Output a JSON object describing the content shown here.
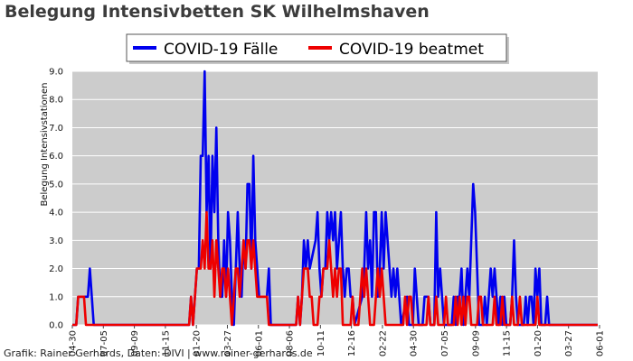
{
  "title": "Belegung Intensivbetten SK Wilhelmshaven",
  "footer": "Grafik: Rainer Gerhards, Daten: DIVI | www.rainer-gerhards.de",
  "chart_data": {
    "type": "line",
    "title": "Belegung Intensivbetten SK Wilhelmshaven",
    "ylabel": "Belegung Intensivstationen",
    "xlabel": "",
    "ylim": [
      0,
      9
    ],
    "yticks": [
      "0.0",
      "1.0",
      "2.0",
      "3.0",
      "4.0",
      "5.0",
      "6.0",
      "7.0",
      "8.0",
      "9.0"
    ],
    "x_ticks": [
      "04-30",
      "07-05",
      "09-09",
      "11-15",
      "01-20",
      "03-27",
      "06-01",
      "08-06",
      "10-11",
      "12-16",
      "02-22",
      "04-30",
      "07-05",
      "09-09",
      "11-15",
      "01-20",
      "03-27",
      "06-01"
    ],
    "grid": true,
    "legend": "top-center",
    "background_color": "#cccccc",
    "series": [
      {
        "name": "COVID-19 Fälle",
        "color": "#0000ee",
        "points": [
          [
            0,
            0
          ],
          [
            2,
            0
          ],
          [
            3,
            1
          ],
          [
            6,
            1
          ],
          [
            8,
            1
          ],
          [
            9,
            2
          ],
          [
            10,
            1
          ],
          [
            11,
            0
          ],
          [
            40,
            0
          ],
          [
            60,
            0
          ],
          [
            61,
            1
          ],
          [
            62,
            0
          ],
          [
            63,
            1
          ],
          [
            64,
            2
          ],
          [
            65,
            2
          ],
          [
            66,
            6
          ],
          [
            67,
            6
          ],
          [
            68,
            9
          ],
          [
            69,
            4
          ],
          [
            70,
            6
          ],
          [
            71,
            2
          ],
          [
            72,
            6
          ],
          [
            73,
            4
          ],
          [
            74,
            7
          ],
          [
            75,
            3
          ],
          [
            76,
            1
          ],
          [
            77,
            1
          ],
          [
            78,
            3
          ],
          [
            79,
            1
          ],
          [
            80,
            4
          ],
          [
            81,
            3
          ],
          [
            82,
            1
          ],
          [
            83,
            0
          ],
          [
            84,
            2
          ],
          [
            85,
            4
          ],
          [
            86,
            2
          ],
          [
            87,
            1
          ],
          [
            88,
            3
          ],
          [
            89,
            2
          ],
          [
            90,
            5
          ],
          [
            91,
            5
          ],
          [
            92,
            2
          ],
          [
            93,
            6
          ],
          [
            94,
            3
          ],
          [
            95,
            2
          ],
          [
            96,
            1
          ],
          [
            100,
            1
          ],
          [
            101,
            2
          ],
          [
            102,
            0
          ],
          [
            115,
            0
          ],
          [
            116,
            1
          ],
          [
            117,
            0
          ],
          [
            118,
            1
          ],
          [
            119,
            3
          ],
          [
            120,
            2
          ],
          [
            121,
            3
          ],
          [
            122,
            2
          ],
          [
            125,
            3
          ],
          [
            126,
            4
          ],
          [
            127,
            2
          ],
          [
            128,
            1
          ],
          [
            129,
            2
          ],
          [
            130,
            2
          ],
          [
            131,
            4
          ],
          [
            132,
            3
          ],
          [
            133,
            4
          ],
          [
            134,
            3
          ],
          [
            135,
            4
          ],
          [
            136,
            2
          ],
          [
            137,
            3
          ],
          [
            138,
            4
          ],
          [
            139,
            2
          ],
          [
            140,
            1
          ],
          [
            141,
            2
          ],
          [
            142,
            2
          ],
          [
            143,
            1
          ],
          [
            144,
            1
          ],
          [
            145,
            0
          ],
          [
            149,
            1
          ],
          [
            150,
            2
          ],
          [
            151,
            4
          ],
          [
            152,
            2
          ],
          [
            153,
            3
          ],
          [
            154,
            1
          ],
          [
            155,
            4
          ],
          [
            156,
            4
          ],
          [
            157,
            1
          ],
          [
            158,
            2
          ],
          [
            159,
            4
          ],
          [
            160,
            2
          ],
          [
            161,
            4
          ],
          [
            162,
            3
          ],
          [
            163,
            2
          ],
          [
            164,
            1
          ],
          [
            165,
            2
          ],
          [
            166,
            1
          ],
          [
            167,
            2
          ],
          [
            168,
            1
          ],
          [
            169,
            0
          ],
          [
            172,
            1
          ],
          [
            173,
            0
          ],
          [
            175,
            0
          ],
          [
            176,
            2
          ],
          [
            177,
            1
          ],
          [
            178,
            0
          ],
          [
            180,
            0
          ],
          [
            181,
            1
          ],
          [
            182,
            1
          ],
          [
            183,
            1
          ],
          [
            184,
            0
          ],
          [
            186,
            0
          ],
          [
            187,
            4
          ],
          [
            188,
            1
          ],
          [
            189,
            2
          ],
          [
            190,
            1
          ],
          [
            191,
            0
          ],
          [
            195,
            0
          ],
          [
            196,
            1
          ],
          [
            197,
            0
          ],
          [
            198,
            1
          ],
          [
            199,
            1
          ],
          [
            200,
            2
          ],
          [
            201,
            0
          ],
          [
            202,
            1
          ],
          [
            203,
            2
          ],
          [
            204,
            1
          ],
          [
            205,
            3
          ],
          [
            206,
            5
          ],
          [
            207,
            4
          ],
          [
            208,
            2
          ],
          [
            209,
            0
          ],
          [
            211,
            0
          ],
          [
            212,
            1
          ],
          [
            213,
            0
          ],
          [
            214,
            1
          ],
          [
            215,
            2
          ],
          [
            216,
            1
          ],
          [
            217,
            2
          ],
          [
            218,
            1
          ],
          [
            219,
            0
          ],
          [
            220,
            1
          ],
          [
            221,
            0
          ],
          [
            222,
            1
          ],
          [
            223,
            0
          ],
          [
            225,
            0
          ],
          [
            226,
            1
          ],
          [
            227,
            3
          ],
          [
            228,
            1
          ],
          [
            229,
            0
          ],
          [
            232,
            0
          ],
          [
            233,
            1
          ],
          [
            234,
            0
          ],
          [
            235,
            1
          ],
          [
            236,
            1
          ],
          [
            237,
            0
          ],
          [
            238,
            2
          ],
          [
            239,
            1
          ],
          [
            240,
            2
          ],
          [
            241,
            0
          ],
          [
            243,
            0
          ],
          [
            244,
            1
          ],
          [
            245,
            0
          ],
          [
            270,
            0
          ]
        ]
      },
      {
        "name": "COVID-19 beatmet",
        "color": "#ee0000",
        "points": [
          [
            0,
            0
          ],
          [
            2,
            0
          ],
          [
            3,
            1
          ],
          [
            6,
            1
          ],
          [
            7,
            0
          ],
          [
            40,
            0
          ],
          [
            60,
            0
          ],
          [
            61,
            1
          ],
          [
            62,
            0
          ],
          [
            63,
            1
          ],
          [
            64,
            2
          ],
          [
            66,
            2
          ],
          [
            67,
            3
          ],
          [
            68,
            2
          ],
          [
            69,
            4
          ],
          [
            70,
            2
          ],
          [
            71,
            2
          ],
          [
            72,
            3
          ],
          [
            73,
            1
          ],
          [
            74,
            3
          ],
          [
            75,
            2
          ],
          [
            76,
            1
          ],
          [
            77,
            2
          ],
          [
            78,
            2
          ],
          [
            79,
            1
          ],
          [
            80,
            2
          ],
          [
            81,
            1
          ],
          [
            82,
            0
          ],
          [
            83,
            1
          ],
          [
            84,
            2
          ],
          [
            85,
            2
          ],
          [
            86,
            1
          ],
          [
            87,
            2
          ],
          [
            88,
            3
          ],
          [
            89,
            2
          ],
          [
            90,
            3
          ],
          [
            91,
            3
          ],
          [
            92,
            2
          ],
          [
            93,
            3
          ],
          [
            94,
            2
          ],
          [
            95,
            1
          ],
          [
            100,
            1
          ],
          [
            101,
            0
          ],
          [
            115,
            0
          ],
          [
            116,
            1
          ],
          [
            117,
            0
          ],
          [
            118,
            1
          ],
          [
            119,
            2
          ],
          [
            121,
            2
          ],
          [
            122,
            1
          ],
          [
            123,
            1
          ],
          [
            124,
            0
          ],
          [
            126,
            0
          ],
          [
            127,
            1
          ],
          [
            128,
            1
          ],
          [
            129,
            2
          ],
          [
            131,
            2
          ],
          [
            132,
            3
          ],
          [
            133,
            2
          ],
          [
            134,
            1
          ],
          [
            135,
            2
          ],
          [
            136,
            1
          ],
          [
            137,
            2
          ],
          [
            138,
            2
          ],
          [
            139,
            0
          ],
          [
            143,
            0
          ],
          [
            144,
            1
          ],
          [
            145,
            0
          ],
          [
            147,
            0
          ],
          [
            148,
            1
          ],
          [
            149,
            2
          ],
          [
            150,
            1
          ],
          [
            151,
            2
          ],
          [
            152,
            1
          ],
          [
            153,
            0
          ],
          [
            155,
            0
          ],
          [
            156,
            1
          ],
          [
            157,
            2
          ],
          [
            158,
            1
          ],
          [
            159,
            2
          ],
          [
            160,
            1
          ],
          [
            161,
            0
          ],
          [
            170,
            0
          ],
          [
            171,
            1
          ],
          [
            172,
            0
          ],
          [
            173,
            1
          ],
          [
            174,
            1
          ],
          [
            175,
            0
          ],
          [
            182,
            0
          ],
          [
            183,
            1
          ],
          [
            184,
            0
          ],
          [
            186,
            0
          ],
          [
            187,
            1
          ],
          [
            188,
            0
          ],
          [
            191,
            0
          ],
          [
            192,
            1
          ],
          [
            193,
            0
          ],
          [
            196,
            0
          ],
          [
            197,
            1
          ],
          [
            198,
            0
          ],
          [
            199,
            1
          ],
          [
            200,
            0
          ],
          [
            201,
            1
          ],
          [
            202,
            0
          ],
          [
            203,
            1
          ],
          [
            204,
            1
          ],
          [
            205,
            0
          ],
          [
            208,
            0
          ],
          [
            209,
            1
          ],
          [
            210,
            1
          ],
          [
            211,
            0
          ],
          [
            216,
            0
          ],
          [
            217,
            1
          ],
          [
            218,
            0
          ],
          [
            220,
            0
          ],
          [
            221,
            1
          ],
          [
            222,
            0
          ],
          [
            225,
            0
          ],
          [
            226,
            1
          ],
          [
            227,
            0
          ],
          [
            229,
            0
          ],
          [
            230,
            1
          ],
          [
            231,
            0
          ],
          [
            238,
            0
          ],
          [
            239,
            1
          ],
          [
            240,
            0
          ],
          [
            270,
            0
          ]
        ]
      }
    ]
  }
}
